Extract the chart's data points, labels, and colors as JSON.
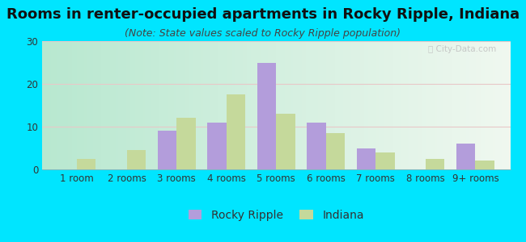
{
  "title": "Rooms in renter-occupied apartments in Rocky Ripple, Indiana",
  "subtitle": "(Note: State values scaled to Rocky Ripple population)",
  "categories": [
    "1 room",
    "2 rooms",
    "3 rooms",
    "4 rooms",
    "5 rooms",
    "6 rooms",
    "7 rooms",
    "8 rooms",
    "9+ rooms"
  ],
  "rocky_ripple": [
    0,
    0,
    9,
    11,
    25,
    11,
    5,
    0,
    6
  ],
  "indiana": [
    2.5,
    4.5,
    12,
    17.5,
    13,
    8.5,
    4,
    2.5,
    2
  ],
  "rocky_ripple_color": "#b39ddb",
  "indiana_color": "#c5d99b",
  "bg_color": "#00e5ff",
  "ylim": [
    0,
    30
  ],
  "yticks": [
    0,
    10,
    20,
    30
  ],
  "bar_width": 0.38,
  "title_fontsize": 13,
  "subtitle_fontsize": 9,
  "tick_fontsize": 8.5,
  "legend_fontsize": 10
}
